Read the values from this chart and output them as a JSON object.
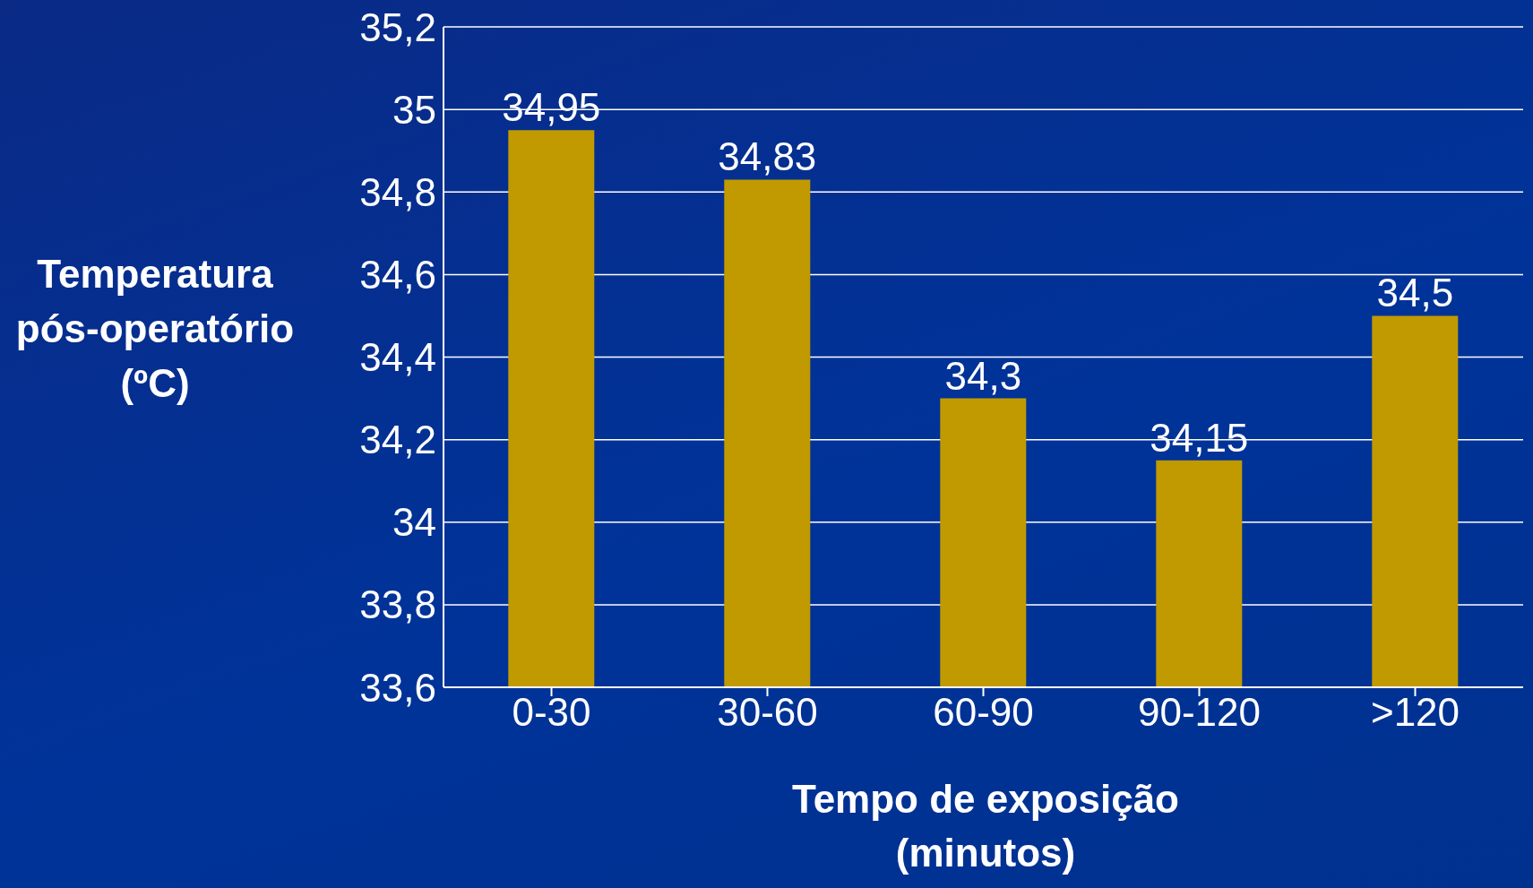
{
  "chart_data": {
    "type": "bar",
    "xlabel": "Tempo de exposição (minutos)",
    "ylabel": "Temperatura pós-operatório (ºC)",
    "categories": [
      "0-30",
      "30-60",
      "60-90",
      "90-120",
      ">120"
    ],
    "values": [
      34.95,
      34.83,
      34.3,
      34.15,
      34.5
    ],
    "value_labels": [
      "34,95",
      "34,83",
      "34,3",
      "34,15",
      "34,5"
    ],
    "color": "#c09a00",
    "ylim": [
      33.6,
      35.2
    ],
    "yticks": [
      {
        "value": 33.6,
        "label": "33,6"
      },
      {
        "value": 33.8,
        "label": "33,8"
      },
      34,
      {
        "value": 34.2,
        "label": "34,2"
      },
      {
        "value": 34.4,
        "label": "34,4"
      },
      {
        "value": 34.6,
        "label": "34,6"
      },
      {
        "value": 34.8,
        "label": "34,8"
      },
      35,
      {
        "value": 35.2,
        "label": "35,2"
      }
    ],
    "grid": "y"
  }
}
